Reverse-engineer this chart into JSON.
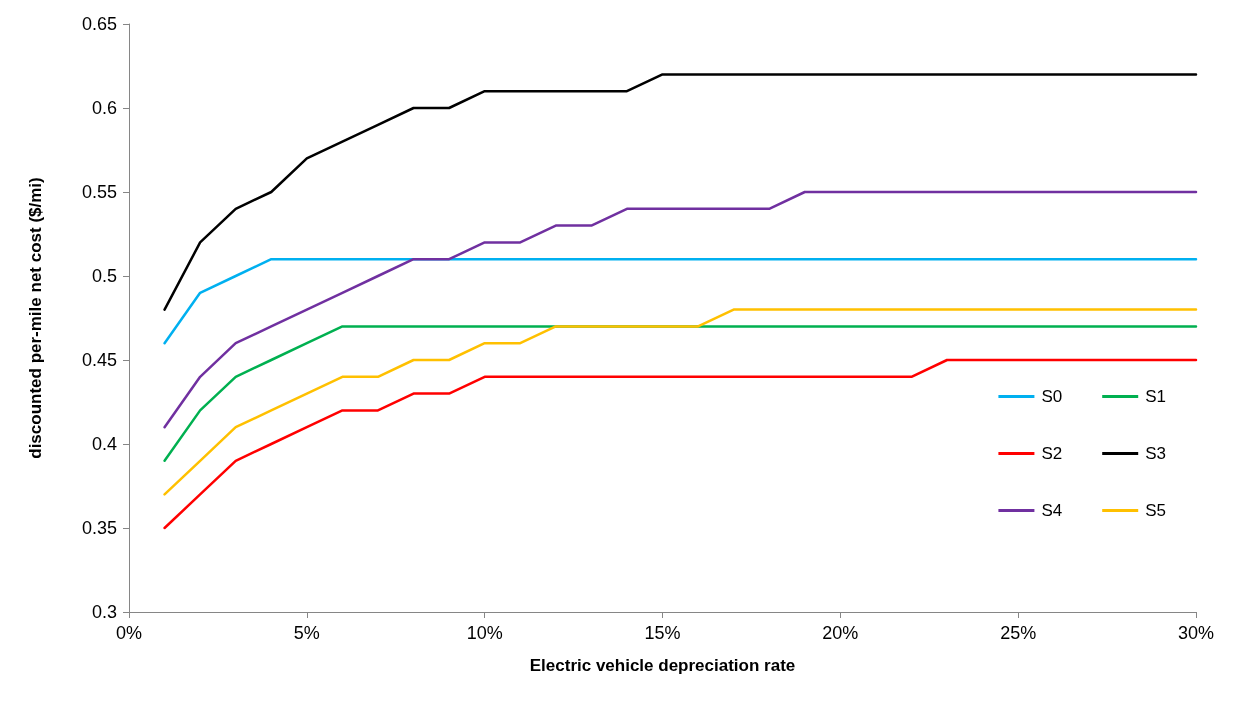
{
  "chart_data": {
    "type": "line",
    "xlabel": "Electric vehicle depreciation rate",
    "ylabel": "discounted per-mile net cost ($/mi)",
    "x": [
      1,
      2,
      3,
      4,
      5,
      6,
      7,
      8,
      9,
      10,
      11,
      12,
      13,
      14,
      15,
      16,
      17,
      18,
      19,
      20,
      21,
      22,
      23,
      24,
      25,
      26,
      27,
      28,
      29,
      30
    ],
    "series": [
      {
        "name": "S0",
        "color": "#00b0f0",
        "values": [
          0.46,
          0.49,
          0.5,
          0.51,
          0.51,
          0.51,
          0.51,
          0.51,
          0.51,
          0.51,
          0.51,
          0.51,
          0.51,
          0.51,
          0.51,
          0.51,
          0.51,
          0.51,
          0.51,
          0.51,
          0.51,
          0.51,
          0.51,
          0.51,
          0.51,
          0.51,
          0.51,
          0.51,
          0.51,
          0.51
        ]
      },
      {
        "name": "S1",
        "color": "#00b050",
        "values": [
          0.39,
          0.42,
          0.44,
          0.45,
          0.46,
          0.47,
          0.47,
          0.47,
          0.47,
          0.47,
          0.47,
          0.47,
          0.47,
          0.47,
          0.47,
          0.47,
          0.47,
          0.47,
          0.47,
          0.47,
          0.47,
          0.47,
          0.47,
          0.47,
          0.47,
          0.47,
          0.47,
          0.47,
          0.47,
          0.47
        ]
      },
      {
        "name": "S2",
        "color": "#ff0000",
        "values": [
          0.35,
          0.37,
          0.39,
          0.4,
          0.41,
          0.42,
          0.42,
          0.43,
          0.43,
          0.44,
          0.44,
          0.44,
          0.44,
          0.44,
          0.44,
          0.44,
          0.44,
          0.44,
          0.44,
          0.44,
          0.44,
          0.44,
          0.45,
          0.45,
          0.45,
          0.45,
          0.45,
          0.45,
          0.45,
          0.45
        ]
      },
      {
        "name": "S3",
        "color": "#000000",
        "values": [
          0.48,
          0.52,
          0.54,
          0.55,
          0.57,
          0.58,
          0.59,
          0.6,
          0.6,
          0.61,
          0.61,
          0.61,
          0.61,
          0.61,
          0.62,
          0.62,
          0.62,
          0.62,
          0.62,
          0.62,
          0.62,
          0.62,
          0.62,
          0.62,
          0.62,
          0.62,
          0.62,
          0.62,
          0.62,
          0.62
        ]
      },
      {
        "name": "S4",
        "color": "#7030a0",
        "values": [
          0.41,
          0.44,
          0.46,
          0.47,
          0.48,
          0.49,
          0.5,
          0.51,
          0.51,
          0.52,
          0.52,
          0.53,
          0.53,
          0.54,
          0.54,
          0.54,
          0.54,
          0.54,
          0.55,
          0.55,
          0.55,
          0.55,
          0.55,
          0.55,
          0.55,
          0.55,
          0.55,
          0.55,
          0.55,
          0.55
        ]
      },
      {
        "name": "S5",
        "color": "#ffc000",
        "values": [
          0.37,
          0.39,
          0.41,
          0.42,
          0.43,
          0.44,
          0.44,
          0.45,
          0.45,
          0.46,
          0.46,
          0.47,
          0.47,
          0.47,
          0.47,
          0.47,
          0.48,
          0.48,
          0.48,
          0.48,
          0.48,
          0.48,
          0.48,
          0.48,
          0.48,
          0.48,
          0.48,
          0.48,
          0.48,
          0.48
        ]
      }
    ],
    "xlim": [
      0,
      30
    ],
    "xticks": [
      {
        "value": 0,
        "label": "0%"
      },
      {
        "value": 5,
        "label": "5%"
      },
      {
        "value": 10,
        "label": "10%"
      },
      {
        "value": 15,
        "label": "15%"
      },
      {
        "value": 20,
        "label": "20%"
      },
      {
        "value": 25,
        "label": "25%"
      },
      {
        "value": 30,
        "label": "30%"
      }
    ],
    "ylim": [
      0.3,
      0.65
    ],
    "yticks": [
      0.3,
      0.35,
      0.4,
      0.45,
      0.5,
      0.55,
      0.6,
      0.65
    ],
    "grid": false,
    "legend": "bottom right",
    "marker": "none",
    "line_style": "solid"
  }
}
